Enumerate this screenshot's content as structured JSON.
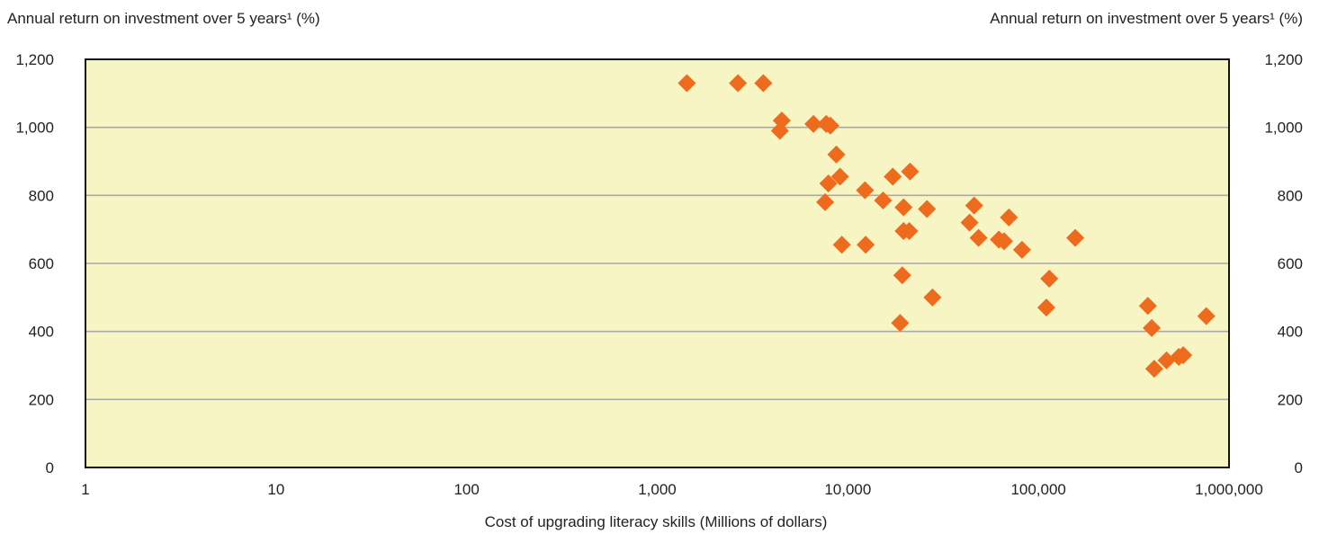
{
  "chart_data": {
    "type": "scatter",
    "x_scale": "log",
    "xlabel": "Cost of upgrading literacy skills  (Millions of dollars)",
    "ylabel_left": "Annual return on investment over 5 years¹  (%)",
    "ylabel_right": "Annual return on investment over 5 years¹  (%)",
    "xlim": [
      1,
      1000000
    ],
    "ylim": [
      0,
      1200
    ],
    "x_ticks": [
      1,
      10,
      100,
      1000,
      10000,
      100000,
      1000000
    ],
    "x_tick_labels": [
      "1",
      "10",
      "100",
      "1,000",
      "10,000",
      "100,000",
      "1,000,000"
    ],
    "y_ticks": [
      0,
      200,
      400,
      600,
      800,
      1000,
      1200
    ],
    "y_tick_labels": [
      "0",
      "200",
      "400",
      "600",
      "800",
      "1,000",
      "1,200"
    ],
    "grid": true,
    "colors": {
      "plot_bg": "#f7f5c4",
      "marker": "#ee6a1d",
      "grid": "#a9a9a9",
      "axis": "#111111"
    },
    "points": [
      {
        "x": 1430,
        "y": 1130
      },
      {
        "x": 2650,
        "y": 1130
      },
      {
        "x": 3600,
        "y": 1130
      },
      {
        "x": 4500,
        "y": 1020
      },
      {
        "x": 4400,
        "y": 990
      },
      {
        "x": 6600,
        "y": 1010
      },
      {
        "x": 7700,
        "y": 1010
      },
      {
        "x": 8100,
        "y": 1005
      },
      {
        "x": 8700,
        "y": 920
      },
      {
        "x": 7900,
        "y": 835
      },
      {
        "x": 9100,
        "y": 855
      },
      {
        "x": 7600,
        "y": 780
      },
      {
        "x": 9300,
        "y": 655
      },
      {
        "x": 12300,
        "y": 815
      },
      {
        "x": 12400,
        "y": 655
      },
      {
        "x": 15300,
        "y": 785
      },
      {
        "x": 17200,
        "y": 855
      },
      {
        "x": 21200,
        "y": 870
      },
      {
        "x": 19600,
        "y": 765
      },
      {
        "x": 19600,
        "y": 695
      },
      {
        "x": 21000,
        "y": 695
      },
      {
        "x": 26000,
        "y": 760
      },
      {
        "x": 19300,
        "y": 565
      },
      {
        "x": 18800,
        "y": 425
      },
      {
        "x": 27800,
        "y": 500
      },
      {
        "x": 46000,
        "y": 770
      },
      {
        "x": 43500,
        "y": 720
      },
      {
        "x": 48500,
        "y": 675
      },
      {
        "x": 62000,
        "y": 670
      },
      {
        "x": 66000,
        "y": 665
      },
      {
        "x": 70000,
        "y": 735
      },
      {
        "x": 82000,
        "y": 640
      },
      {
        "x": 114000,
        "y": 555
      },
      {
        "x": 110000,
        "y": 470
      },
      {
        "x": 156000,
        "y": 675
      },
      {
        "x": 375000,
        "y": 475
      },
      {
        "x": 393000,
        "y": 410
      },
      {
        "x": 405000,
        "y": 290
      },
      {
        "x": 470000,
        "y": 315
      },
      {
        "x": 545000,
        "y": 325
      },
      {
        "x": 575000,
        "y": 330
      },
      {
        "x": 760000,
        "y": 445
      }
    ]
  }
}
